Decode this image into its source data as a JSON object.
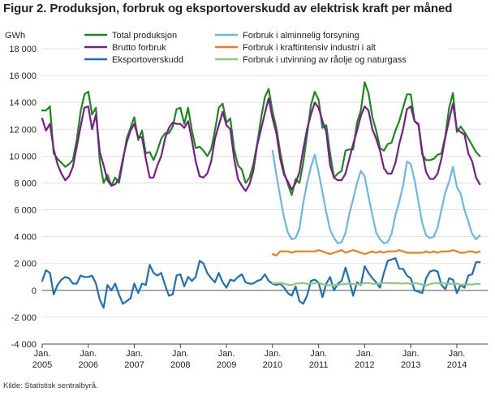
{
  "title": "Figur 2. Produksjon, forbruk og eksportoverskudd av elektrisk kraft per måned",
  "source": "Kilde: Statistisk sentralbyrå.",
  "chart_data": {
    "type": "line",
    "unit_label": "GWh",
    "ylim": [
      -4000,
      18000
    ],
    "y_ticks": [
      -4000,
      -2000,
      0,
      2000,
      4000,
      6000,
      8000,
      10000,
      12000,
      14000,
      16000,
      18000
    ],
    "y_tick_labels": [
      "-4 000",
      "-2 000",
      "0",
      "2 000",
      "4 000",
      "6 000",
      "8 000",
      "10 000",
      "12 000",
      "14 000",
      "16 000",
      "18 000"
    ],
    "x_range": [
      2005.0,
      2014.67
    ],
    "x_ticks": [
      {
        "year": 2005,
        "label1": "Jan.",
        "label2": "2005"
      },
      {
        "year": 2006,
        "label1": "Jan.",
        "label2": "2006"
      },
      {
        "year": 2007,
        "label1": "Jan.",
        "label2": "2007"
      },
      {
        "year": 2008,
        "label1": "Jan.",
        "label2": "2008"
      },
      {
        "year": 2009,
        "label1": "Jan.",
        "label2": "2009"
      },
      {
        "year": 2010,
        "label1": "Jan.",
        "label2": "2010"
      },
      {
        "year": 2011,
        "label1": "Jan.",
        "label2": "2011"
      },
      {
        "year": 2012,
        "label1": "Jan.",
        "label2": "2012"
      },
      {
        "year": 2013,
        "label1": "Jan.",
        "label2": "2013"
      },
      {
        "year": 2014,
        "label1": "Jan.",
        "label2": "2014"
      }
    ],
    "grid": "horizontal",
    "legend_position": "top",
    "series": [
      {
        "name": "Total produksjon",
        "color": "#1a8a1a",
        "start": 2005.0,
        "values": [
          13400,
          13400,
          13700,
          10200,
          9800,
          9500,
          9200,
          9400,
          9700,
          11200,
          13300,
          14600,
          14800,
          13100,
          13600,
          9600,
          8000,
          8600,
          7800,
          8400,
          8000,
          9600,
          11300,
          12100,
          12900,
          11200,
          11900,
          10200,
          10300,
          9700,
          10400,
          11300,
          11700,
          11700,
          12200,
          13500,
          13600,
          12400,
          13600,
          11900,
          10600,
          10700,
          10400,
          10000,
          10500,
          11900,
          13600,
          13900,
          12500,
          12800,
          10500,
          9300,
          9000,
          8000,
          8400,
          9400,
          10900,
          12800,
          14400,
          15000,
          13300,
          12100,
          10300,
          8800,
          7900,
          7100,
          8300,
          8000,
          9500,
          11600,
          13800,
          14800,
          14200,
          12100,
          12300,
          10200,
          8400,
          8700,
          8900,
          10400,
          10500,
          10500,
          12500,
          13400,
          15500,
          14700,
          12900,
          11900,
          10600,
          10400,
          10900,
          11000,
          11900,
          12600,
          13600,
          14600,
          14600,
          12600,
          12300,
          10100,
          9700,
          9700,
          9800,
          10100,
          10200,
          11500,
          13600,
          14700,
          11800,
          12200,
          11800,
          11300,
          10800,
          10300,
          10000
        ]
      },
      {
        "name": "Brutto forbruk",
        "color": "#7a1c8c",
        "start": 2005.0,
        "values": [
          12800,
          11900,
          12400,
          10500,
          9400,
          8700,
          8200,
          8500,
          9200,
          10700,
          12200,
          13600,
          13700,
          12000,
          13100,
          10300,
          9300,
          8200,
          7800,
          7900,
          8300,
          9800,
          11000,
          11900,
          12400,
          11400,
          11400,
          9800,
          8400,
          8400,
          9300,
          10000,
          11300,
          12100,
          12500,
          12400,
          12400,
          12100,
          12600,
          11200,
          9600,
          8500,
          8400,
          8700,
          9600,
          11300,
          12300,
          13300,
          12300,
          12000,
          9800,
          8300,
          7800,
          7400,
          7900,
          8900,
          10800,
          12000,
          13200,
          14300,
          12800,
          11700,
          9800,
          8600,
          8100,
          7500,
          8000,
          8800,
          10500,
          12000,
          13100,
          14000,
          13600,
          12600,
          11800,
          9300,
          8400,
          8200,
          8200,
          8700,
          9800,
          10900,
          11900,
          13000,
          13700,
          13400,
          12000,
          11300,
          10400,
          9100,
          8700,
          8700,
          9500,
          10900,
          12000,
          13500,
          13700,
          12600,
          12400,
          10300,
          8800,
          8300,
          8300,
          8700,
          9800,
          11400,
          12700,
          13900,
          12000,
          11800,
          11600,
          10200,
          9600,
          8400,
          7900
        ]
      },
      {
        "name": "Eksportoverskudd",
        "color": "#1c6fb9",
        "start": 2005.0,
        "values": [
          700,
          1500,
          1300,
          -300,
          400,
          800,
          1000,
          900,
          500,
          500,
          1100,
          1000,
          1000,
          1100,
          500,
          -700,
          -1300,
          400,
          0,
          500,
          -300,
          -1000,
          -800,
          -600,
          500,
          -200,
          500,
          400,
          1900,
          1300,
          1100,
          1300,
          400,
          -400,
          -300,
          1100,
          1200,
          300,
          1000,
          700,
          1000,
          2200,
          2000,
          1300,
          900,
          600,
          1300,
          600,
          200,
          800,
          700,
          1000,
          1200,
          600,
          500,
          500,
          700,
          800,
          1200,
          700,
          500,
          400,
          500,
          200,
          -200,
          -400,
          300,
          -800,
          -1000,
          -400,
          700,
          800,
          600,
          -500,
          500,
          1000,
          0,
          500,
          700,
          1700,
          700,
          -400,
          600,
          400,
          1800,
          1300,
          900,
          600,
          200,
          1300,
          2200,
          2300,
          2400,
          1600,
          1600,
          1100,
          900,
          0,
          -100,
          -200,
          900,
          1400,
          1500,
          1400,
          400,
          100,
          900,
          800,
          -200,
          400,
          200,
          1100,
          1200,
          2100,
          2100
        ]
      },
      {
        "name": "Forbruk i alminnelig forsyning",
        "color": "#6cb6e6",
        "start": 2010.0,
        "values": [
          10400,
          8600,
          7000,
          5400,
          4300,
          3800,
          3900,
          4600,
          6500,
          8000,
          9200,
          10100,
          8800,
          7300,
          5800,
          4500,
          3900,
          3500,
          3600,
          4300,
          5700,
          6800,
          8000,
          8900,
          8500,
          7000,
          5600,
          4300,
          3800,
          3500,
          3600,
          4200,
          5600,
          6600,
          7800,
          9600,
          9400,
          8200,
          6600,
          5000,
          4100,
          3900,
          4000,
          4700,
          6000,
          7300,
          8100,
          9200,
          7700,
          7200,
          6000,
          5100,
          4200,
          3800,
          4100
        ]
      },
      {
        "name": "Forbruk i kraftintensiv industri i alt",
        "color": "#f07d1b",
        "start": 2010.0,
        "values": [
          2700,
          2600,
          2900,
          2900,
          2900,
          2800,
          2900,
          2900,
          2900,
          2900,
          2900,
          2900,
          3000,
          2900,
          2800,
          2700,
          2800,
          2900,
          3000,
          2800,
          2900,
          3000,
          2900,
          2800,
          2700,
          2800,
          2900,
          2800,
          2900,
          2800,
          2900,
          2900,
          2900,
          3000,
          2900,
          2800,
          2800,
          2800,
          2800,
          2800,
          2900,
          2800,
          2900,
          2800,
          2900,
          2900,
          2900,
          3000,
          2900,
          2800,
          2800,
          2900,
          2900,
          2800,
          2900
        ]
      },
      {
        "name": "Forbruk i utvinning av råolje og naturgass",
        "color": "#8cc97a",
        "start": 2010.0,
        "values": [
          550,
          520,
          560,
          500,
          420,
          400,
          500,
          520,
          550,
          480,
          500,
          530,
          560,
          480,
          380,
          390,
          400,
          420,
          450,
          480,
          520,
          480,
          450,
          460,
          560,
          540,
          500,
          480,
          520,
          560,
          550,
          520,
          560,
          520,
          500,
          540,
          480,
          540,
          500,
          430,
          350,
          470,
          520,
          540,
          500,
          520,
          480,
          490,
          510,
          420,
          440,
          450,
          430,
          490,
          480
        ]
      }
    ]
  }
}
